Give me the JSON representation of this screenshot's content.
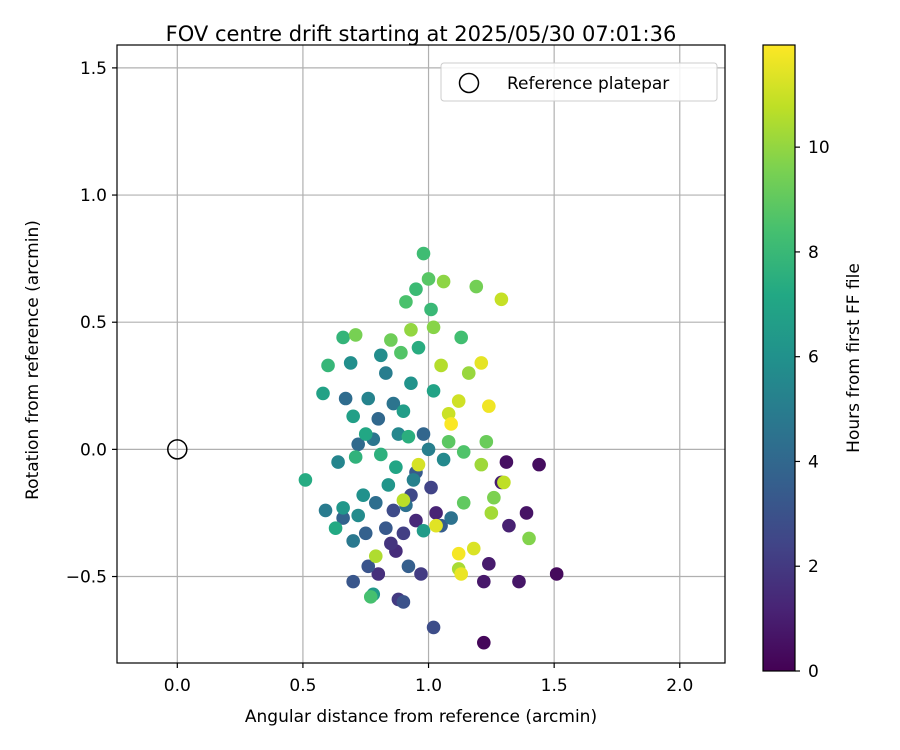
{
  "chart_data": {
    "type": "scatter",
    "title": "FOV centre drift starting at 2025/05/30 07:01:36",
    "xlabel": "Angular distance from reference (arcmin)",
    "ylabel": "Rotation from reference (arcmin)",
    "xlim": [
      -0.24,
      2.18
    ],
    "ylim": [
      -0.84,
      1.59
    ],
    "x_ticks": [
      0.0,
      0.5,
      1.0,
      1.5,
      2.0
    ],
    "x_tick_labels": [
      "0.0",
      "0.5",
      "1.0",
      "1.5",
      "2.0"
    ],
    "y_ticks": [
      -0.5,
      0.0,
      0.5,
      1.0,
      1.5
    ],
    "y_tick_labels": [
      "−0.5",
      "0.0",
      "0.5",
      "1.0",
      "1.5"
    ],
    "grid": true,
    "legend": {
      "placement": "top-right",
      "entries": [
        "Reference platepar"
      ]
    },
    "reference_point": {
      "x": 0.0,
      "y": 0.0,
      "label": "Reference platepar"
    },
    "colorbar": {
      "label": "Hours from first FF file",
      "colormap": "viridis",
      "range": [
        0,
        11.95
      ],
      "ticks": [
        0,
        2,
        4,
        6,
        8,
        10
      ],
      "tick_labels": [
        "0",
        "2",
        "4",
        "6",
        "8",
        "10"
      ]
    },
    "points": [
      {
        "x": 1.22,
        "y": -0.76,
        "h": 0.2
      },
      {
        "x": 1.51,
        "y": -0.49,
        "h": 0.3
      },
      {
        "x": 1.44,
        "y": -0.06,
        "h": 0.4
      },
      {
        "x": 1.31,
        "y": -0.05,
        "h": 0.5
      },
      {
        "x": 1.39,
        "y": -0.25,
        "h": 0.6
      },
      {
        "x": 1.36,
        "y": -0.52,
        "h": 0.7
      },
      {
        "x": 1.22,
        "y": -0.52,
        "h": 0.8
      },
      {
        "x": 1.24,
        "y": -0.45,
        "h": 0.9
      },
      {
        "x": 1.29,
        "y": -0.13,
        "h": 1.0
      },
      {
        "x": 1.32,
        "y": -0.3,
        "h": 1.1
      },
      {
        "x": 1.03,
        "y": -0.25,
        "h": 1.2
      },
      {
        "x": 0.95,
        "y": -0.28,
        "h": 1.4
      },
      {
        "x": 0.87,
        "y": -0.4,
        "h": 1.5
      },
      {
        "x": 0.8,
        "y": -0.49,
        "h": 1.6
      },
      {
        "x": 0.85,
        "y": -0.37,
        "h": 1.8
      },
      {
        "x": 0.88,
        "y": -0.59,
        "h": 2.0
      },
      {
        "x": 0.97,
        "y": -0.49,
        "h": 2.1
      },
      {
        "x": 0.9,
        "y": -0.33,
        "h": 2.2
      },
      {
        "x": 1.01,
        "y": -0.15,
        "h": 2.4
      },
      {
        "x": 0.93,
        "y": -0.18,
        "h": 2.6
      },
      {
        "x": 0.86,
        "y": -0.24,
        "h": 2.7
      },
      {
        "x": 1.02,
        "y": -0.7,
        "h": 2.8
      },
      {
        "x": 0.9,
        "y": -0.6,
        "h": 3.0
      },
      {
        "x": 0.76,
        "y": -0.46,
        "h": 3.1
      },
      {
        "x": 0.7,
        "y": -0.52,
        "h": 3.2
      },
      {
        "x": 0.83,
        "y": -0.31,
        "h": 3.3
      },
      {
        "x": 0.95,
        "y": -0.09,
        "h": 3.4
      },
      {
        "x": 1.05,
        "y": -0.3,
        "h": 3.5
      },
      {
        "x": 0.92,
        "y": -0.46,
        "h": 3.6
      },
      {
        "x": 0.75,
        "y": -0.33,
        "h": 3.7
      },
      {
        "x": 0.66,
        "y": -0.27,
        "h": 3.8
      },
      {
        "x": 0.98,
        "y": 0.06,
        "h": 3.9
      },
      {
        "x": 0.8,
        "y": 0.12,
        "h": 4.0
      },
      {
        "x": 0.72,
        "y": 0.02,
        "h": 4.1
      },
      {
        "x": 0.67,
        "y": 0.2,
        "h": 4.2
      },
      {
        "x": 0.79,
        "y": -0.21,
        "h": 4.3
      },
      {
        "x": 0.91,
        "y": -0.22,
        "h": 4.4
      },
      {
        "x": 1.09,
        "y": -0.27,
        "h": 4.5
      },
      {
        "x": 0.86,
        "y": 0.18,
        "h": 4.6
      },
      {
        "x": 0.78,
        "y": 0.04,
        "h": 4.7
      },
      {
        "x": 0.7,
        "y": -0.36,
        "h": 4.8
      },
      {
        "x": 0.59,
        "y": -0.24,
        "h": 4.9
      },
      {
        "x": 0.83,
        "y": 0.3,
        "h": 5.0
      },
      {
        "x": 1.0,
        "y": 0.0,
        "h": 5.1
      },
      {
        "x": 0.94,
        "y": -0.12,
        "h": 5.2
      },
      {
        "x": 0.76,
        "y": 0.2,
        "h": 5.3
      },
      {
        "x": 0.64,
        "y": -0.05,
        "h": 5.4
      },
      {
        "x": 0.88,
        "y": 0.06,
        "h": 5.5
      },
      {
        "x": 1.06,
        "y": -0.04,
        "h": 5.6
      },
      {
        "x": 0.72,
        "y": -0.26,
        "h": 5.7
      },
      {
        "x": 0.81,
        "y": 0.37,
        "h": 5.8
      },
      {
        "x": 0.69,
        "y": 0.34,
        "h": 5.9
      },
      {
        "x": 0.74,
        "y": -0.18,
        "h": 6.0
      },
      {
        "x": 0.93,
        "y": 0.26,
        "h": 6.1
      },
      {
        "x": 0.84,
        "y": -0.14,
        "h": 6.2
      },
      {
        "x": 0.66,
        "y": -0.23,
        "h": 6.3
      },
      {
        "x": 0.78,
        "y": -0.57,
        "h": 6.4
      },
      {
        "x": 0.98,
        "y": -0.32,
        "h": 6.5
      },
      {
        "x": 0.9,
        "y": 0.15,
        "h": 6.6
      },
      {
        "x": 0.7,
        "y": 0.13,
        "h": 6.7
      },
      {
        "x": 0.58,
        "y": 0.22,
        "h": 6.8
      },
      {
        "x": 1.02,
        "y": 0.23,
        "h": 6.9
      },
      {
        "x": 0.87,
        "y": -0.07,
        "h": 7.0
      },
      {
        "x": 0.75,
        "y": 0.06,
        "h": 7.1
      },
      {
        "x": 0.63,
        "y": -0.31,
        "h": 7.2
      },
      {
        "x": 0.51,
        "y": -0.12,
        "h": 7.3
      },
      {
        "x": 0.96,
        "y": 0.4,
        "h": 7.4
      },
      {
        "x": 0.92,
        "y": 0.05,
        "h": 7.5
      },
      {
        "x": 0.81,
        "y": -0.02,
        "h": 7.6
      },
      {
        "x": 0.71,
        "y": -0.03,
        "h": 7.7
      },
      {
        "x": 0.66,
        "y": 0.44,
        "h": 7.8
      },
      {
        "x": 0.6,
        "y": 0.33,
        "h": 7.9
      },
      {
        "x": 1.01,
        "y": 0.55,
        "h": 8.0
      },
      {
        "x": 0.95,
        "y": 0.63,
        "h": 8.1
      },
      {
        "x": 0.98,
        "y": 0.77,
        "h": 8.2
      },
      {
        "x": 1.13,
        "y": 0.44,
        "h": 8.3
      },
      {
        "x": 0.77,
        "y": -0.58,
        "h": 8.4
      },
      {
        "x": 0.91,
        "y": 0.58,
        "h": 8.5
      },
      {
        "x": 1.14,
        "y": -0.01,
        "h": 8.6
      },
      {
        "x": 0.89,
        "y": 0.38,
        "h": 8.7
      },
      {
        "x": 1.0,
        "y": 0.67,
        "h": 8.8
      },
      {
        "x": 1.08,
        "y": 0.03,
        "h": 8.9
      },
      {
        "x": 1.14,
        "y": -0.21,
        "h": 9.0
      },
      {
        "x": 1.23,
        "y": 0.03,
        "h": 9.2
      },
      {
        "x": 0.85,
        "y": 0.43,
        "h": 9.3
      },
      {
        "x": 1.19,
        "y": 0.64,
        "h": 9.4
      },
      {
        "x": 0.71,
        "y": 0.45,
        "h": 9.5
      },
      {
        "x": 1.26,
        "y": -0.19,
        "h": 9.6
      },
      {
        "x": 1.4,
        "y": -0.35,
        "h": 9.7
      },
      {
        "x": 1.02,
        "y": 0.48,
        "h": 9.8
      },
      {
        "x": 1.06,
        "y": 0.66,
        "h": 9.9
      },
      {
        "x": 0.93,
        "y": 0.47,
        "h": 10.0
      },
      {
        "x": 1.16,
        "y": 0.3,
        "h": 10.1
      },
      {
        "x": 1.21,
        "y": -0.06,
        "h": 10.2
      },
      {
        "x": 1.25,
        "y": -0.25,
        "h": 10.3
      },
      {
        "x": 1.12,
        "y": -0.47,
        "h": 10.4
      },
      {
        "x": 0.79,
        "y": -0.42,
        "h": 10.5
      },
      {
        "x": 1.05,
        "y": 0.33,
        "h": 10.6
      },
      {
        "x": 0.9,
        "y": -0.2,
        "h": 10.7
      },
      {
        "x": 1.3,
        "y": -0.13,
        "h": 10.8
      },
      {
        "x": 1.29,
        "y": 0.59,
        "h": 10.9
      },
      {
        "x": 1.08,
        "y": 0.14,
        "h": 11.0
      },
      {
        "x": 1.12,
        "y": 0.19,
        "h": 11.1
      },
      {
        "x": 0.96,
        "y": -0.06,
        "h": 11.2
      },
      {
        "x": 1.18,
        "y": -0.39,
        "h": 11.3
      },
      {
        "x": 1.03,
        "y": -0.3,
        "h": 11.4
      },
      {
        "x": 1.21,
        "y": 0.34,
        "h": 11.5
      },
      {
        "x": 1.13,
        "y": -0.49,
        "h": 11.6
      },
      {
        "x": 1.24,
        "y": 0.17,
        "h": 11.7
      },
      {
        "x": 1.12,
        "y": -0.41,
        "h": 11.8
      },
      {
        "x": 1.09,
        "y": 0.1,
        "h": 11.9
      }
    ]
  }
}
